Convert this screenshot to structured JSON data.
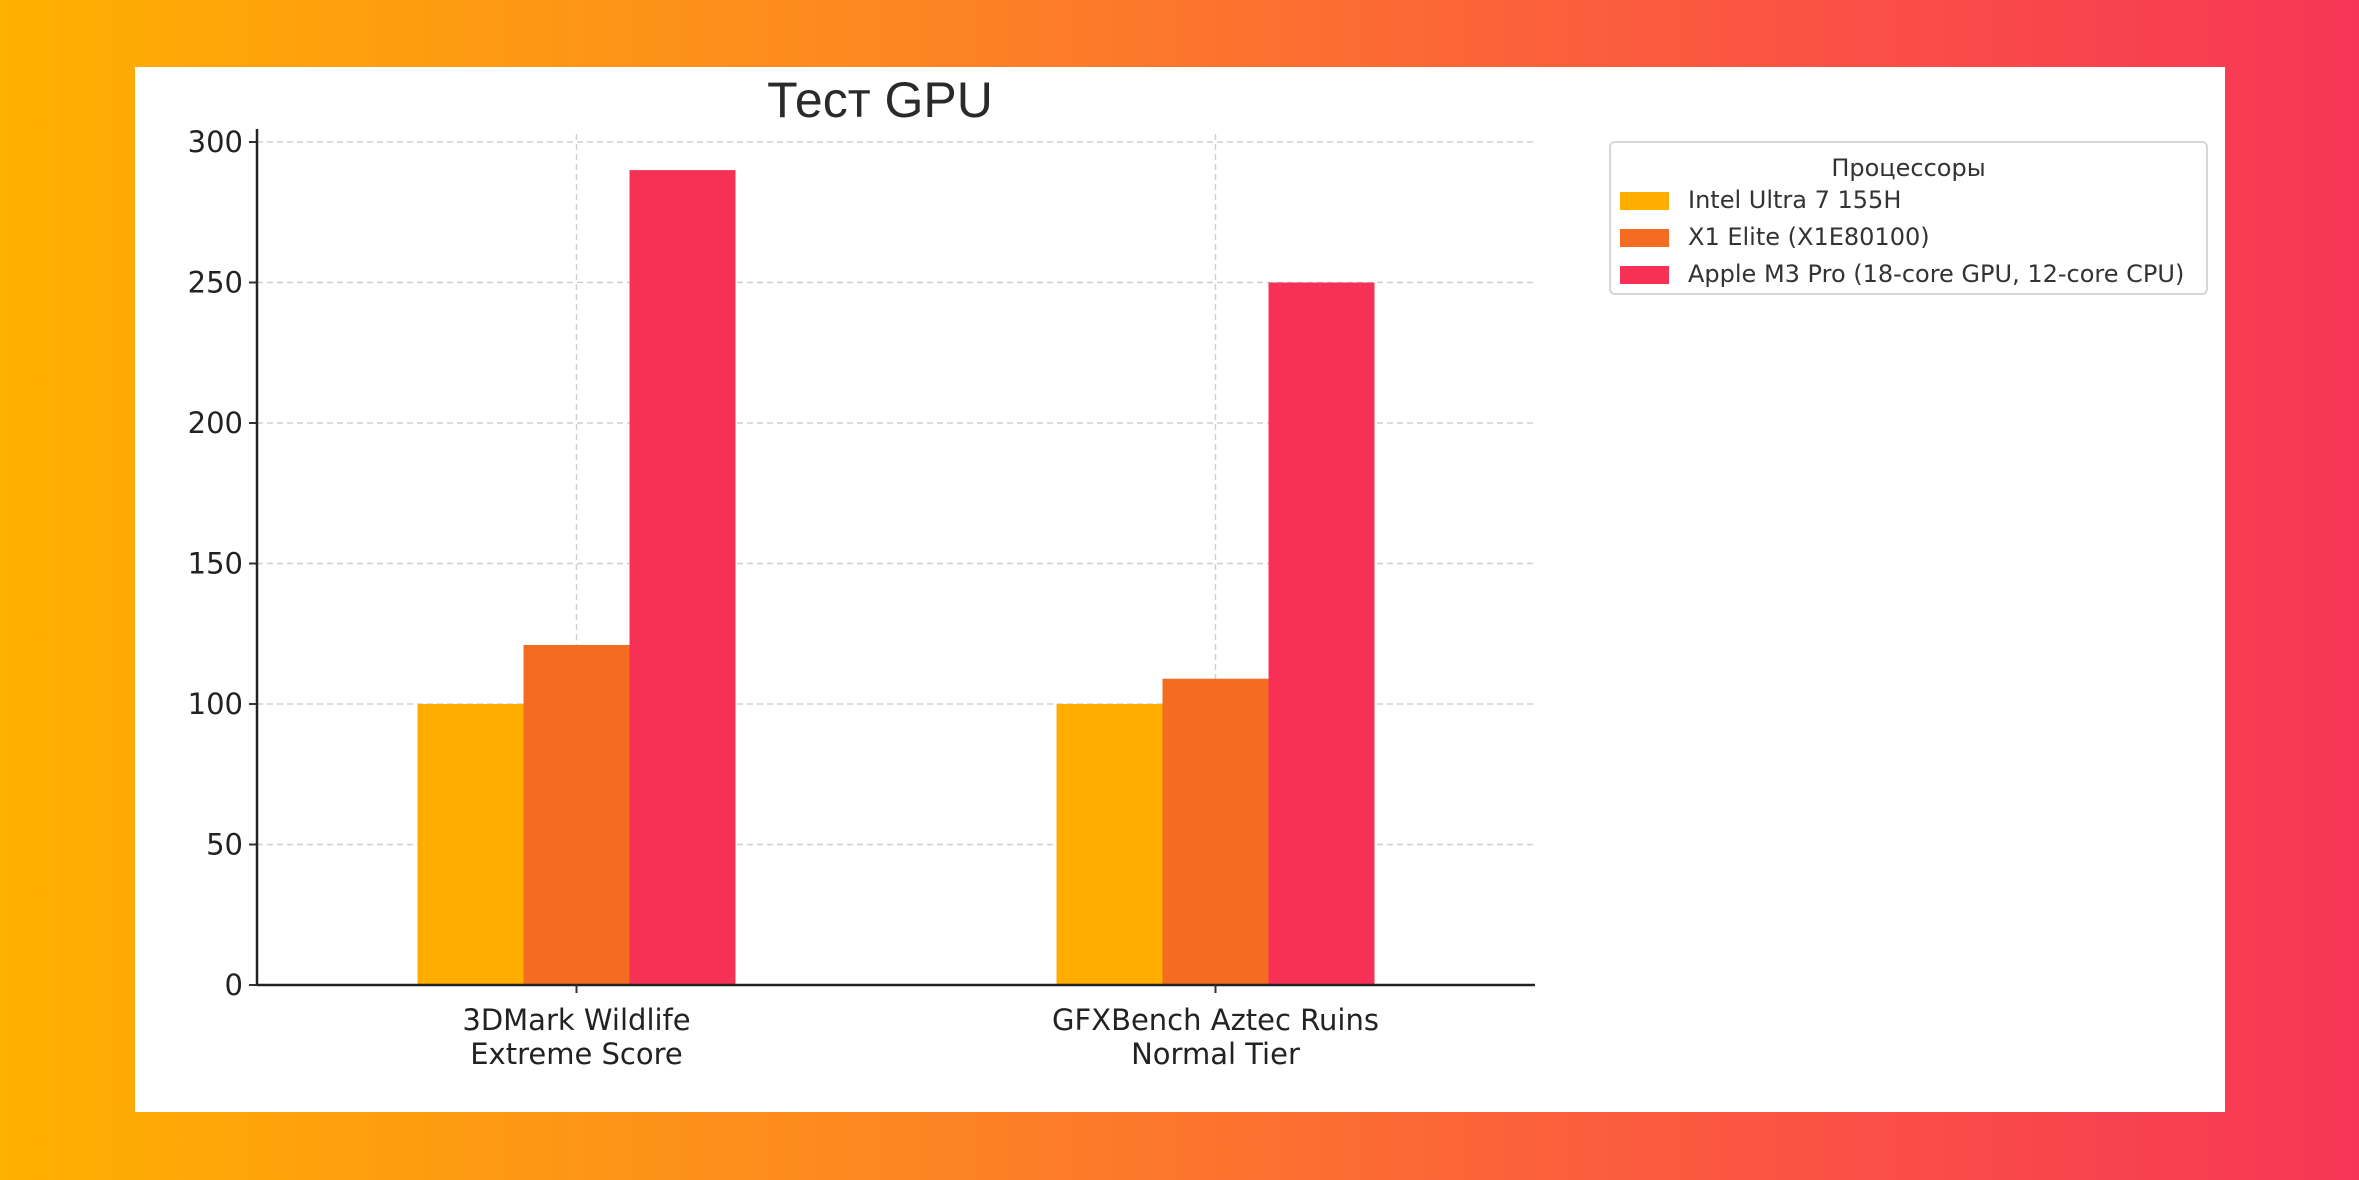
{
  "chart_data": {
    "type": "bar",
    "title": "Тест GPU",
    "xlabel": "",
    "ylabel": "",
    "categories": [
      "3DMark Wildlife\nExtreme Score",
      "GFXBench Aztec Ruins\nNormal Tier"
    ],
    "series": [
      {
        "name": "Intel Ultra 7 155H",
        "values": [
          100,
          100
        ],
        "color": "#ffae00"
      },
      {
        "name": "X1 Elite (X1E80100)",
        "values": [
          121,
          109
        ],
        "color": "#f46b22"
      },
      {
        "name": "Apple M3 Pro (18-core GPU, 12-core CPU)",
        "values": [
          290,
          250
        ],
        "color": "#f73155"
      }
    ],
    "ylim": [
      0,
      300
    ],
    "yticks": [
      0,
      50,
      100,
      150,
      200,
      250,
      300
    ],
    "grid": true,
    "legend": {
      "title": "Процессоры",
      "placement": "outside-right"
    }
  }
}
